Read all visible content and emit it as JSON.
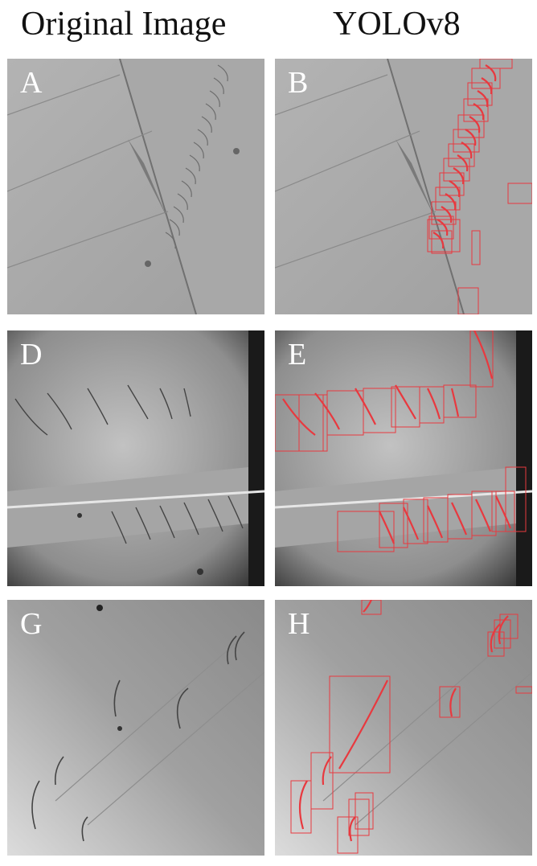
{
  "header": {
    "left_title": "Original Image",
    "right_title": "YOLOv8"
  },
  "panels": {
    "a": {
      "label": "A"
    },
    "b": {
      "label": "B"
    },
    "d": {
      "label": "D"
    },
    "e": {
      "label": "E"
    },
    "g": {
      "label": "G"
    },
    "h": {
      "label": "H"
    }
  },
  "colors": {
    "detection_box": "#e8393f",
    "background": "#ffffff",
    "label_text": "#ffffff"
  }
}
